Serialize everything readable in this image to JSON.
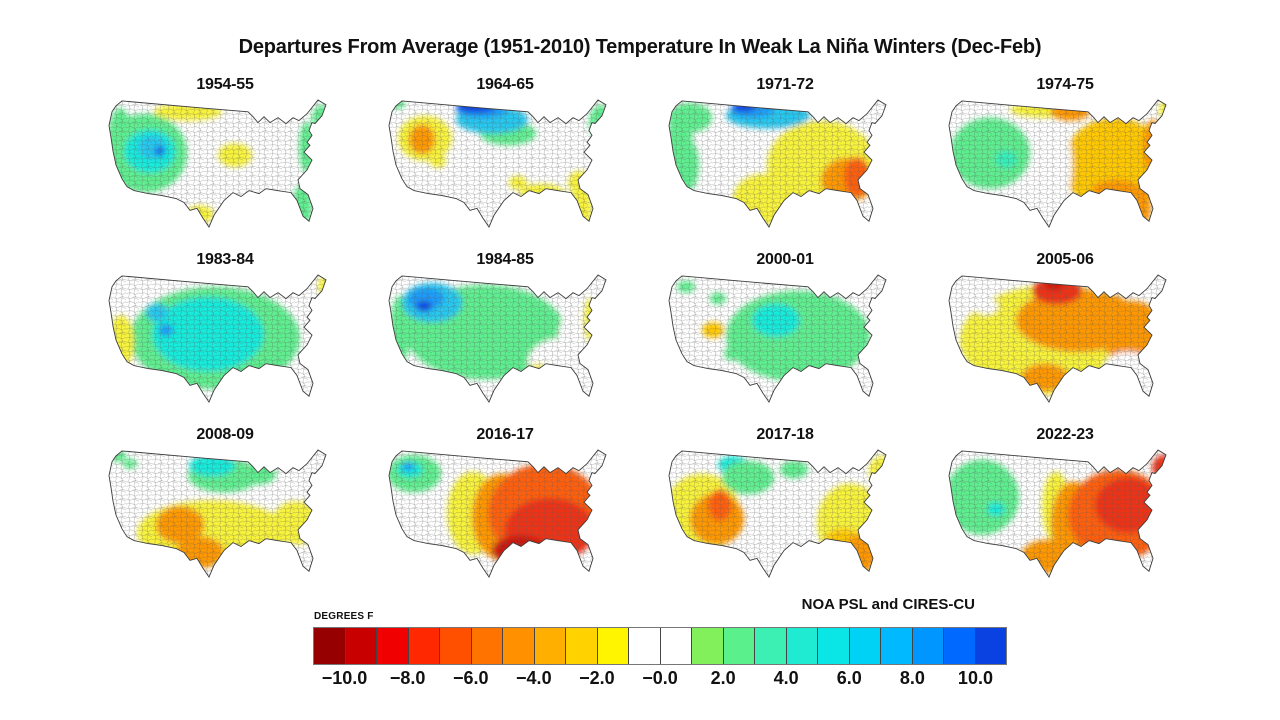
{
  "title": "Departures From Average (1951-2010) Temperature In Weak La Niña Winters (Dec-Feb)",
  "credit": "NOA PSL and CIRES-CU",
  "colorbar": {
    "units_label": "DEGREES F",
    "tick_labels": [
      "−10.0",
      "−8.0",
      "−6.0",
      "−4.0",
      "−2.0",
      "−0.0",
      "2.0",
      "4.0",
      "6.0",
      "8.0",
      "10.0"
    ],
    "segment_colors": [
      "#960000",
      "#C80000",
      "#F00000",
      "#FF2800",
      "#FF5000",
      "#FF7300",
      "#FF9100",
      "#FFAF00",
      "#FFD200",
      "#FFF500",
      "#FFFFFF",
      "#FFFFFF",
      "#82F05A",
      "#5AF08C",
      "#3CF0B4",
      "#1EEBD2",
      "#0AE6E6",
      "#00D2F5",
      "#00B9FF",
      "#0096FF",
      "#0069FF",
      "#0A41E1"
    ],
    "value_range": [
      -11,
      11
    ],
    "tick_step": 2.0
  },
  "chart_data": {
    "type": "heatmap",
    "figure": "12-panel US county choropleth of winter temperature departures (°F) for weak La Niña years",
    "palette": {
      "white": "#FFFFFF",
      "yellow": "#F7F23A",
      "gold": "#FFC800",
      "orange": "#FF9803",
      "orangered": "#FF5F0A",
      "red": "#EE3014",
      "crimson": "#CC1208",
      "green": "#5FEE8F",
      "teal": "#35F0BC",
      "cyan": "#16EBDC",
      "skyblue": "#27C8F0",
      "blue": "#1E9BFA",
      "deepblue": "#0A64F5",
      "darkblue": "#0A3CE8"
    },
    "panels": [
      {
        "label": "1954-55",
        "regions": [
          {
            "area": "west",
            "color": "green"
          },
          {
            "area": "west-coast",
            "color": "green"
          },
          {
            "area": "great-basin",
            "color": "cyan"
          },
          {
            "area": "gb-blue",
            "color": "skyblue"
          },
          {
            "area": "gb-dark",
            "color": "deepblue"
          },
          {
            "area": "north-band",
            "color": "yellow"
          },
          {
            "area": "missouri",
            "color": "yellow"
          },
          {
            "area": "east-coast",
            "color": "green"
          },
          {
            "area": "northeast",
            "color": "green"
          },
          {
            "area": "florida",
            "color": "green"
          },
          {
            "area": "texas-south",
            "color": "yellow"
          }
        ]
      },
      {
        "label": "1964-65",
        "regions": [
          {
            "area": "n-green",
            "color": "green"
          },
          {
            "area": "n-cyan",
            "color": "skyblue"
          },
          {
            "area": "n-blue",
            "color": "blue"
          },
          {
            "area": "n-dark",
            "color": "darkblue"
          },
          {
            "area": "ne-green",
            "color": "green"
          },
          {
            "area": "wa-tip",
            "color": "green"
          },
          {
            "area": "w-yellow",
            "color": "yellow"
          },
          {
            "area": "w-orange",
            "color": "orange"
          },
          {
            "area": "ut-yellow",
            "color": "yellow"
          },
          {
            "area": "fl-yellow",
            "color": "yellow"
          },
          {
            "area": "gulf-yellow",
            "color": "yellow"
          },
          {
            "area": "secoast-yellow",
            "color": "yellow"
          },
          {
            "area": "mo-yellow",
            "color": "yellow"
          }
        ]
      },
      {
        "label": "1971-72",
        "regions": [
          {
            "area": "pnw",
            "color": "green"
          },
          {
            "area": "west-coast",
            "color": "green"
          },
          {
            "area": "california",
            "color": "green"
          },
          {
            "area": "n-cyan2",
            "color": "skyblue"
          },
          {
            "area": "n-blue2",
            "color": "blue"
          },
          {
            "area": "n-dark2",
            "color": "darkblue"
          },
          {
            "area": "east-yellow",
            "color": "yellow"
          },
          {
            "area": "tx-yellow",
            "color": "yellow"
          },
          {
            "area": "se-orange",
            "color": "orange"
          },
          {
            "area": "se-core",
            "color": "orangered"
          }
        ]
      },
      {
        "label": "1974-75",
        "regions": [
          {
            "area": "west2",
            "color": "green"
          },
          {
            "area": "co-cyan",
            "color": "teal"
          },
          {
            "area": "east-gold",
            "color": "gold"
          },
          {
            "area": "n-yellow",
            "color": "yellow"
          },
          {
            "area": "mn-orange",
            "color": "orange"
          },
          {
            "area": "ec-orange",
            "color": "orange"
          },
          {
            "area": "gulf-orange",
            "color": "orange"
          },
          {
            "area": "fl-orange",
            "color": "orange"
          },
          {
            "area": "maine-y",
            "color": "yellow"
          },
          {
            "area": "center-white",
            "color": "white"
          },
          {
            "area": "tx-white",
            "color": "white"
          }
        ]
      },
      {
        "label": "1983-84",
        "regions": [
          {
            "area": "g-broad",
            "color": "green"
          },
          {
            "area": "c-core",
            "color": "cyan"
          },
          {
            "area": "id-blue",
            "color": "skyblue"
          },
          {
            "area": "ut-blue",
            "color": "blue"
          },
          {
            "area": "ca-yellow",
            "color": "yellow"
          },
          {
            "area": "maine-y2",
            "color": "yellow"
          },
          {
            "area": "ec-white",
            "color": "white"
          },
          {
            "area": "fl-white",
            "color": "white"
          }
        ]
      },
      {
        "label": "1984-85",
        "regions": [
          {
            "area": "g-broad2",
            "color": "green"
          },
          {
            "area": "wc-green",
            "color": "green"
          },
          {
            "area": "nw-cyan",
            "color": "skyblue"
          },
          {
            "area": "nw-blue",
            "color": "blue"
          },
          {
            "area": "nw-dark",
            "color": "darkblue"
          },
          {
            "area": "se-white",
            "color": "white"
          },
          {
            "area": "e-white",
            "color": "white"
          },
          {
            "area": "ma-yellow",
            "color": "yellow"
          },
          {
            "area": "gulf-y2",
            "color": "yellow"
          }
        ]
      },
      {
        "label": "2000-01",
        "regions": [
          {
            "area": "g-broad3",
            "color": "green"
          },
          {
            "area": "c-core2",
            "color": "cyan"
          },
          {
            "area": "ut-gold",
            "color": "gold"
          },
          {
            "area": "wa-g",
            "color": "green"
          },
          {
            "area": "mt-g",
            "color": "green"
          },
          {
            "area": "nm-g",
            "color": "green"
          },
          {
            "area": "fl-white2",
            "color": "white"
          }
        ]
      },
      {
        "label": "2005-06",
        "regions": [
          {
            "area": "y-broad",
            "color": "yellow"
          },
          {
            "area": "o-broad",
            "color": "orange"
          },
          {
            "area": "o-east",
            "color": "orange"
          },
          {
            "area": "tx-orange",
            "color": "orange"
          },
          {
            "area": "r-core",
            "color": "red"
          },
          {
            "area": "r-dark",
            "color": "crimson"
          },
          {
            "area": "pnw-white",
            "color": "white"
          },
          {
            "area": "id-white",
            "color": "white"
          },
          {
            "area": "se-white2",
            "color": "white"
          },
          {
            "area": "fl-white3",
            "color": "white"
          }
        ]
      },
      {
        "label": "2008-09",
        "regions": [
          {
            "area": "n-green3",
            "color": "green"
          },
          {
            "area": "n-cyan3",
            "color": "cyan"
          },
          {
            "area": "mi-green",
            "color": "green"
          },
          {
            "area": "y-south",
            "color": "yellow"
          },
          {
            "area": "o-sw",
            "color": "orange"
          },
          {
            "area": "o-tx",
            "color": "orange"
          },
          {
            "area": "y-east",
            "color": "yellow"
          },
          {
            "area": "wa-g2",
            "color": "green"
          },
          {
            "area": "wa-g3",
            "color": "green"
          }
        ]
      },
      {
        "label": "2016-17",
        "regions": [
          {
            "area": "pnw-g",
            "color": "green"
          },
          {
            "area": "pnw-c",
            "color": "cyan"
          },
          {
            "area": "pnw-b",
            "color": "blue"
          },
          {
            "area": "y-band",
            "color": "yellow"
          },
          {
            "area": "o-band",
            "color": "orange"
          },
          {
            "area": "or-broad",
            "color": "orangered"
          },
          {
            "area": "r-broad",
            "color": "red"
          },
          {
            "area": "r-core2",
            "color": "crimson"
          }
        ]
      },
      {
        "label": "2017-18",
        "regions": [
          {
            "area": "w-yellow2",
            "color": "yellow"
          },
          {
            "area": "sw-orange",
            "color": "orange"
          },
          {
            "area": "sw-core",
            "color": "orangered"
          },
          {
            "area": "mt-cyan",
            "color": "cyan"
          },
          {
            "area": "plains-green",
            "color": "green"
          },
          {
            "area": "mn-green",
            "color": "green"
          },
          {
            "area": "e-yellow",
            "color": "yellow"
          },
          {
            "area": "se-gold",
            "color": "gold"
          },
          {
            "area": "fl-orange2",
            "color": "orange"
          },
          {
            "area": "ne-yellow",
            "color": "yellow"
          }
        ]
      },
      {
        "label": "2022-23",
        "regions": [
          {
            "area": "w-green",
            "color": "green"
          },
          {
            "area": "ut-cyan",
            "color": "cyan"
          },
          {
            "area": "y-band2",
            "color": "yellow"
          },
          {
            "area": "o-band2",
            "color": "orange"
          },
          {
            "area": "or-east",
            "color": "orangered"
          },
          {
            "area": "r-core3",
            "color": "red"
          },
          {
            "area": "r-ne",
            "color": "red"
          },
          {
            "area": "o-tx2",
            "color": "orange"
          }
        ]
      }
    ]
  }
}
